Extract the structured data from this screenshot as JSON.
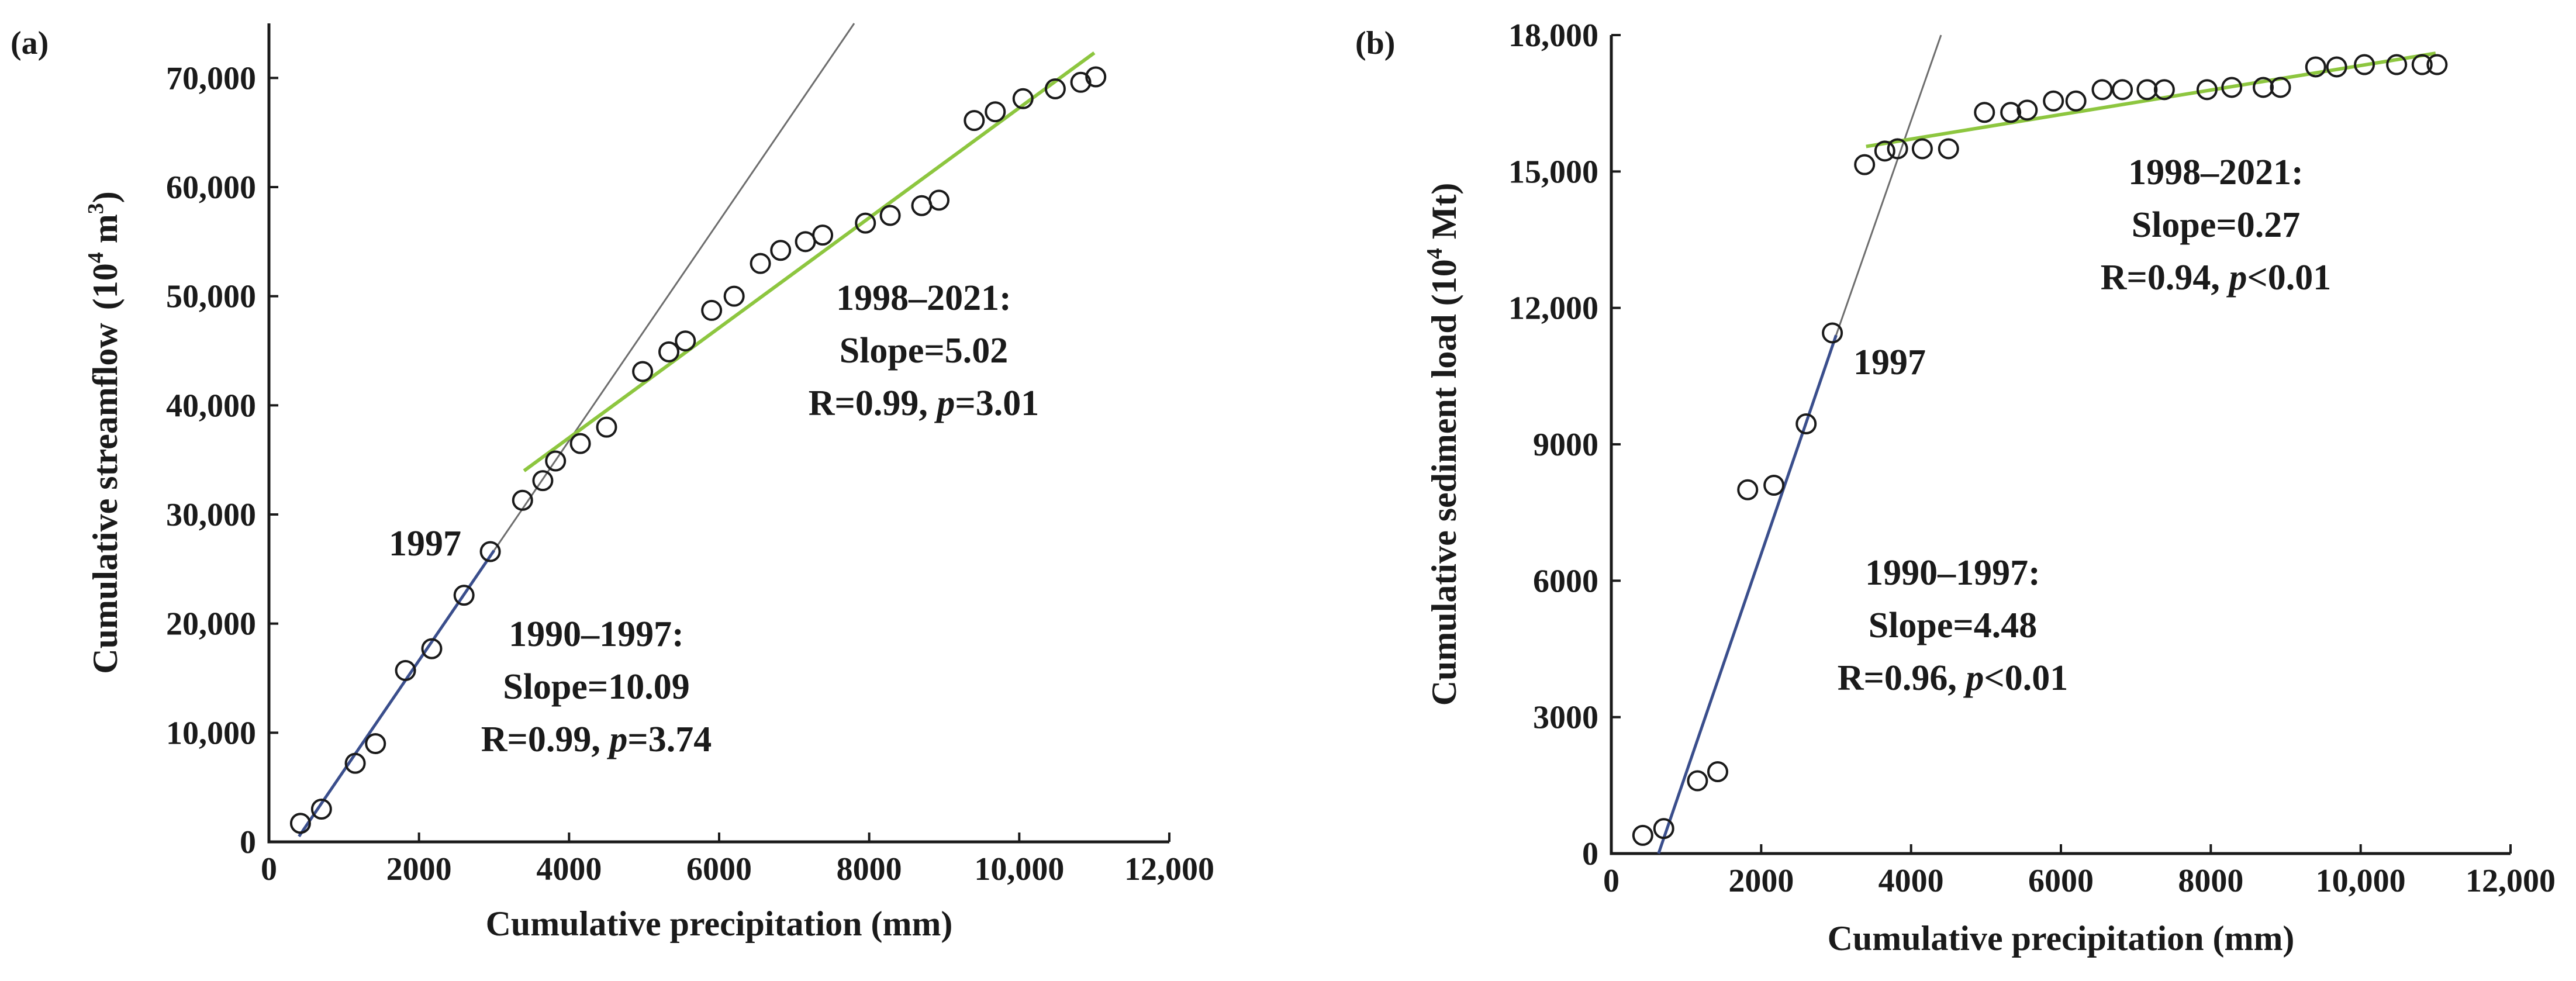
{
  "chart_data": [
    {
      "panel": "(a)",
      "type": "scatter",
      "xlabel": "Cumulative precipitation (mm)",
      "ylabel": "Cumulative streamflow",
      "ylabel_unit_base": "(10",
      "ylabel_unit_exp": "4",
      "ylabel_unit_mid": " m",
      "ylabel_unit_sup2": "3",
      "ylabel_unit_end": ")",
      "xlim": [
        0,
        12000
      ],
      "ylim": [
        0,
        75000
      ],
      "x_ticks": [
        0,
        2000,
        4000,
        6000,
        8000,
        10000,
        12000
      ],
      "x_tick_labels": [
        "0",
        "2000",
        "4000",
        "6000",
        "8000",
        "10,000",
        "12,000"
      ],
      "y_ticks": [
        0,
        10000,
        20000,
        30000,
        40000,
        50000,
        60000,
        70000
      ],
      "y_tick_labels": [
        "0",
        "10,000",
        "20,000",
        "30,000",
        "40,000",
        "50,000",
        "60,000",
        "70,000"
      ],
      "points": [
        [
          420,
          1700
        ],
        [
          700,
          3000
        ],
        [
          1150,
          7200
        ],
        [
          1420,
          9000
        ],
        [
          1820,
          15700
        ],
        [
          2170,
          17700
        ],
        [
          2600,
          22600
        ],
        [
          2950,
          26600
        ],
        [
          3380,
          31300
        ],
        [
          3650,
          33100
        ],
        [
          3820,
          34900
        ],
        [
          4150,
          36500
        ],
        [
          4500,
          38000
        ],
        [
          4980,
          43100
        ],
        [
          5330,
          44900
        ],
        [
          5550,
          45900
        ],
        [
          5900,
          48700
        ],
        [
          6200,
          50000
        ],
        [
          6550,
          53000
        ],
        [
          6820,
          54200
        ],
        [
          7150,
          55000
        ],
        [
          7380,
          55600
        ],
        [
          7950,
          56700
        ],
        [
          8280,
          57400
        ],
        [
          8700,
          58300
        ],
        [
          8930,
          58800
        ],
        [
          9400,
          66100
        ],
        [
          9680,
          66900
        ],
        [
          10050,
          68100
        ],
        [
          10480,
          69000
        ],
        [
          10820,
          69600
        ],
        [
          11020,
          70100
        ]
      ],
      "fit_early": {
        "from": [
          400,
          500
        ],
        "to": [
          3000,
          26700
        ]
      },
      "extension": {
        "from": [
          3000,
          26700
        ],
        "to": [
          7800,
          75000
        ]
      },
      "fit_late": {
        "from": [
          3400,
          34000
        ],
        "to": [
          11000,
          72300
        ]
      },
      "annotations": {
        "year": "1997",
        "early_period": "1990–1997:",
        "early_slope": "Slope=10.09",
        "early_r": "R=0.99, ",
        "early_p_sym": "p",
        "early_p_val": "=3.74",
        "late_period": "1998–2021:",
        "late_slope": "Slope=5.02",
        "late_r": "R=0.99, ",
        "late_p_sym": "p",
        "late_p_val": "=3.01"
      }
    },
    {
      "panel": "(b)",
      "type": "scatter",
      "xlabel": "Cumulative precipitation (mm)",
      "ylabel": "Cumulative sediment load",
      "ylabel_unit_base": "(10",
      "ylabel_unit_exp": "4",
      "ylabel_unit_end": " Mt)",
      "xlim": [
        0,
        12000
      ],
      "ylim": [
        0,
        18000
      ],
      "x_ticks": [
        0,
        2000,
        4000,
        6000,
        8000,
        10000,
        12000
      ],
      "x_tick_labels": [
        "0",
        "2000",
        "4000",
        "6000",
        "8000",
        "10,000",
        "12,000"
      ],
      "y_ticks": [
        0,
        3000,
        6000,
        9000,
        12000,
        15000,
        18000
      ],
      "y_tick_labels": [
        "0",
        "3000",
        "6000",
        "9000",
        "12,000",
        "15,000",
        "18,000"
      ],
      "points": [
        [
          420,
          400
        ],
        [
          700,
          550
        ],
        [
          1150,
          1600
        ],
        [
          1420,
          1800
        ],
        [
          1820,
          8000
        ],
        [
          2170,
          8100
        ],
        [
          2600,
          9450
        ],
        [
          2950,
          11450
        ],
        [
          3380,
          15150
        ],
        [
          3650,
          15450
        ],
        [
          3820,
          15500
        ],
        [
          4150,
          15500
        ],
        [
          4500,
          15500
        ],
        [
          4980,
          16300
        ],
        [
          5330,
          16300
        ],
        [
          5550,
          16350
        ],
        [
          5900,
          16550
        ],
        [
          6200,
          16550
        ],
        [
          6550,
          16800
        ],
        [
          6820,
          16800
        ],
        [
          7150,
          16800
        ],
        [
          7380,
          16800
        ],
        [
          7950,
          16800
        ],
        [
          8280,
          16850
        ],
        [
          8700,
          16850
        ],
        [
          8930,
          16850
        ],
        [
          9400,
          17300
        ],
        [
          9680,
          17300
        ],
        [
          10050,
          17350
        ],
        [
          10480,
          17350
        ],
        [
          10820,
          17350
        ],
        [
          11020,
          17350
        ]
      ],
      "fit_early": {
        "from": [
          630,
          0
        ],
        "to": [
          3000,
          11400
        ]
      },
      "extension": {
        "from": [
          3000,
          11400
        ],
        "to": [
          4400,
          18000
        ]
      },
      "fit_late": {
        "from": [
          3400,
          15550
        ],
        "to": [
          11000,
          17600
        ]
      },
      "annotations": {
        "year": "1997",
        "early_period": "1990–1997:",
        "early_slope": "Slope=4.48",
        "early_r": "R=0.96, ",
        "early_p_sym": "p",
        "early_p_val": "<0.01",
        "late_period": "1998–2021:",
        "late_slope": "Slope=0.27",
        "late_r": "R=0.94, ",
        "late_p_sym": "p",
        "late_p_val": "<0.01"
      }
    }
  ]
}
